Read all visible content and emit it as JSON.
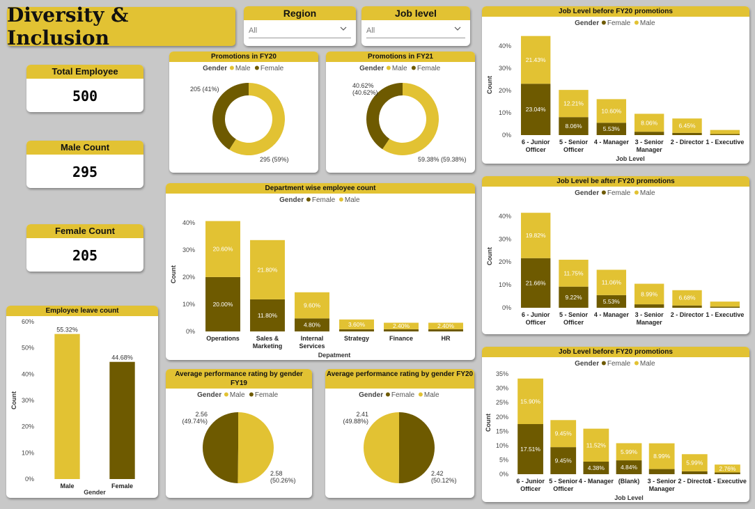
{
  "header": {
    "title": "Diversity & Inclusion"
  },
  "slicers": {
    "region": {
      "label": "Region",
      "value": "All"
    },
    "job_level": {
      "label": "Job level",
      "value": "All"
    }
  },
  "kpis": {
    "total": {
      "label": "Total Employee",
      "value": "500"
    },
    "male": {
      "label": "Male Count",
      "value": "295"
    },
    "female": {
      "label": "Female Count",
      "value": "205"
    }
  },
  "colors": {
    "male": "#e2c233",
    "female": "#6e5a00"
  },
  "chart_data": [
    {
      "id": "promo_fy20",
      "type": "pie",
      "donut": true,
      "title": "Promotions in FY20",
      "legend_title": "Gender",
      "legend_position": "top",
      "slices": [
        {
          "name": "Male",
          "value": 295,
          "label": "295 (59%)"
        },
        {
          "name": "Female",
          "value": 205,
          "label": "205 (41%)"
        }
      ]
    },
    {
      "id": "promo_fy21",
      "type": "pie",
      "donut": true,
      "title": "Promotions in FY21",
      "legend_title": "Gender",
      "legend_position": "top",
      "slices": [
        {
          "name": "Male",
          "value": 59.38,
          "label": "59.38% (59.38%)"
        },
        {
          "name": "Female",
          "value": 40.62,
          "label": "40.62% (40.62%)"
        }
      ]
    },
    {
      "id": "jl_before_1",
      "type": "bar",
      "stacked": true,
      "title": "Job Level before FY20 promotions",
      "legend_title": "Gender",
      "legend_position": "top",
      "xlabel": "Job Level",
      "ylabel": "Count",
      "ylim": [
        0,
        45
      ],
      "ticks": [
        "0%",
        "10%",
        "20%",
        "30%",
        "40%"
      ],
      "categories": [
        "6 - Junior Officer",
        "5 - Senior Officer",
        "4 - Manager",
        "3 - Senior Manager",
        "2 - Director",
        "1 - Executive"
      ],
      "series": [
        {
          "name": "Female",
          "values": [
            23.04,
            8.06,
            5.53,
            1.5,
            1.0,
            0.5
          ],
          "labels": [
            "23.04%",
            "8.06%",
            "5.53%",
            "",
            "",
            ""
          ]
        },
        {
          "name": "Male",
          "values": [
            21.43,
            12.21,
            10.6,
            8.06,
            6.45,
            1.8
          ],
          "labels": [
            "21.43%",
            "12.21%",
            "10.60%",
            "8.06%",
            "6.45%",
            ""
          ]
        }
      ]
    },
    {
      "id": "jl_after",
      "type": "bar",
      "stacked": true,
      "title": "Job Level be after FY20 promotions",
      "legend_title": "Gender",
      "legend_position": "top",
      "xlabel": "",
      "ylabel": "Count",
      "ylim": [
        0,
        45
      ],
      "ticks": [
        "0%",
        "10%",
        "20%",
        "30%",
        "40%"
      ],
      "categories": [
        "6 - Junior Officer",
        "5 - Senior Officer",
        "4 - Manager",
        "3 - Senior Manager",
        "2 - Director",
        "1 - Executive"
      ],
      "series": [
        {
          "name": "Female",
          "values": [
            21.66,
            9.22,
            5.53,
            1.5,
            1.0,
            0.5
          ],
          "labels": [
            "21.66%",
            "9.22%",
            "5.53%",
            "",
            "",
            ""
          ]
        },
        {
          "name": "Male",
          "values": [
            19.82,
            11.75,
            11.06,
            8.99,
            6.68,
            2.2
          ],
          "labels": [
            "19.82%",
            "11.75%",
            "11.06%",
            "8.99%",
            "6.68%",
            ""
          ]
        }
      ]
    },
    {
      "id": "jl_before_2",
      "type": "bar",
      "stacked": true,
      "title": "Job Level before FY20 promotions",
      "legend_title": "Gender",
      "legend_position": "top",
      "xlabel": "Job Level",
      "ylabel": "Count",
      "ylim": [
        0,
        36
      ],
      "ticks": [
        "0%",
        "5%",
        "10%",
        "15%",
        "20%",
        "25%",
        "30%",
        "35%"
      ],
      "categories": [
        "6 - Junior Officer",
        "5 - Senior Officer",
        "4 - Manager",
        "(Blank)",
        "3 - Senior Manager",
        "2 - Director",
        "1 - Executive"
      ],
      "series": [
        {
          "name": "Female",
          "values": [
            17.51,
            9.45,
            4.38,
            4.84,
            1.8,
            1.0,
            0.6
          ],
          "labels": [
            "17.51%",
            "9.45%",
            "4.38%",
            "4.84%",
            "",
            "",
            ""
          ]
        },
        {
          "name": "Male",
          "values": [
            15.9,
            9.45,
            11.52,
            5.99,
            8.99,
            5.99,
            2.76
          ],
          "labels": [
            "15.90%",
            "9.45%",
            "11.52%",
            "5.99%",
            "8.99%",
            "5.99%",
            "2.76%"
          ]
        }
      ]
    },
    {
      "id": "dept",
      "type": "bar",
      "stacked": true,
      "title": "Department wise employee count",
      "legend_title": "Gender",
      "legend_position": "top",
      "xlabel": "Depatment",
      "ylabel": "Count",
      "ylim": [
        0,
        42
      ],
      "ticks": [
        "0%",
        "10%",
        "20%",
        "30%",
        "40%"
      ],
      "categories": [
        "Operations",
        "Sales & Marketing",
        "Internal Services",
        "Strategy",
        "Finance",
        "HR"
      ],
      "series": [
        {
          "name": "Female",
          "values": [
            20.0,
            11.8,
            4.8,
            0.8,
            0.8,
            0.8
          ],
          "labels": [
            "20.00%",
            "11.80%",
            "4.80%",
            "",
            "",
            ""
          ]
        },
        {
          "name": "Male",
          "values": [
            20.6,
            21.8,
            9.6,
            3.6,
            2.4,
            2.4
          ],
          "labels": [
            "20.60%",
            "21.80%",
            "9.60%",
            "3.60%",
            "2.40%",
            "2.40%"
          ]
        }
      ]
    },
    {
      "id": "leave",
      "type": "bar",
      "stacked": false,
      "title": "Employee leave count",
      "xlabel": "Gender",
      "ylabel": "Count",
      "ylim": [
        0,
        60
      ],
      "ticks": [
        "0%",
        "10%",
        "20%",
        "30%",
        "40%",
        "50%",
        "60%"
      ],
      "categories": [
        "Male",
        "Female"
      ],
      "values": [
        55.32,
        44.68
      ],
      "labels": [
        "55.32%",
        "44.68%"
      ]
    },
    {
      "id": "perf_fy19",
      "type": "pie",
      "donut": false,
      "title": "Average performance rating by gender FY19",
      "legend_title": "Gender",
      "legend_position": "top",
      "slices": [
        {
          "name": "Male",
          "value": 2.58,
          "label": "2.58 (50.26%)"
        },
        {
          "name": "Female",
          "value": 2.56,
          "label": "2.56 (49.74%)"
        }
      ]
    },
    {
      "id": "perf_fy20",
      "type": "pie",
      "donut": false,
      "title": "Average performance rating by gender FY20",
      "legend_title": "Gender",
      "legend_position": "top",
      "slices": [
        {
          "name": "Female",
          "value": 2.42,
          "label": "2.42 (50.12%)"
        },
        {
          "name": "Male",
          "value": 2.41,
          "label": "2.41 (49.88%)"
        }
      ]
    }
  ]
}
